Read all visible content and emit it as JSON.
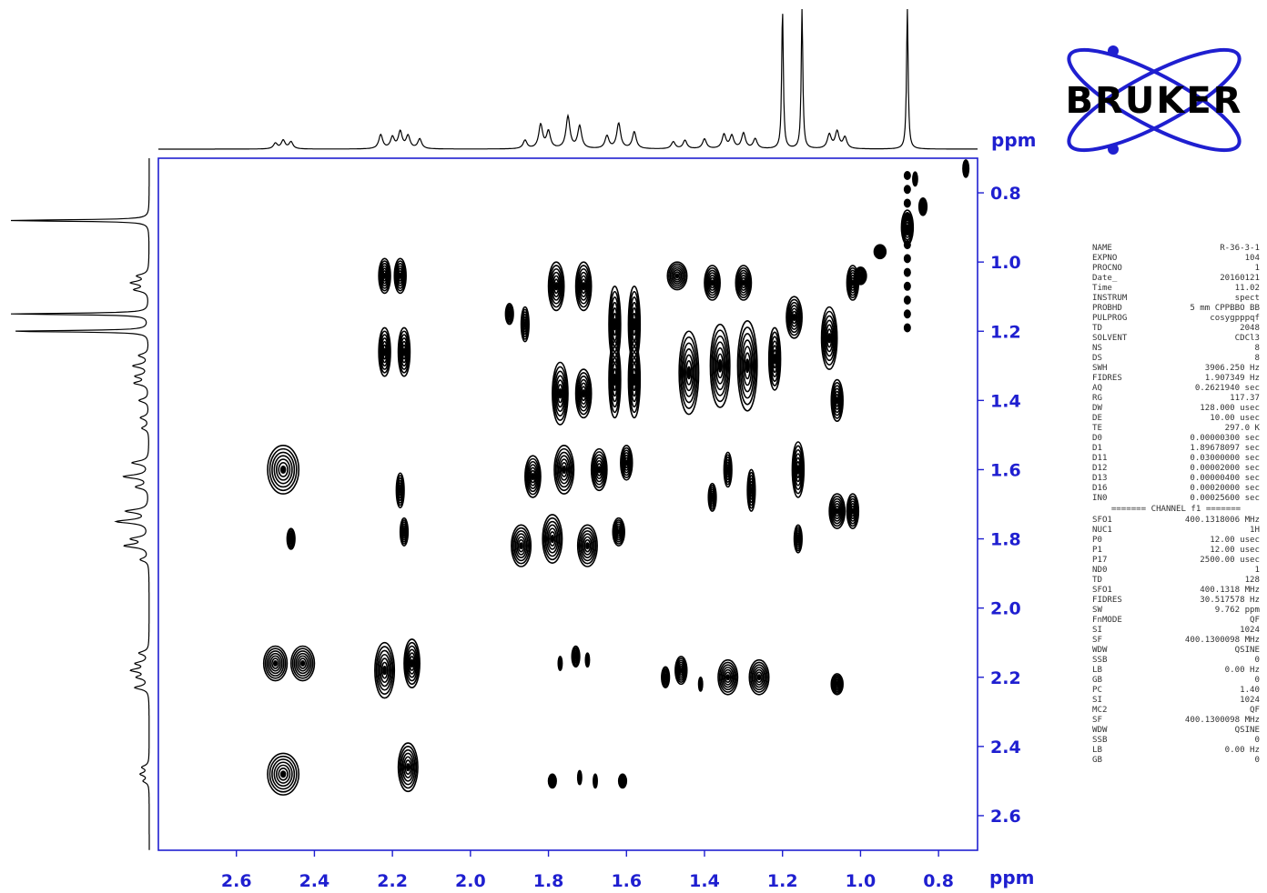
{
  "colors": {
    "axis": "#1f1fd0",
    "contour": "#000000",
    "trace": "#000000",
    "logo": "#1f1fd0"
  },
  "logo": {
    "name": "bruker-logo",
    "text": "BRUKER"
  },
  "chart_data": {
    "type": "heatmap",
    "subtype": "2D NMR COSY contour plot",
    "title": "",
    "xlabel": "ppm",
    "ylabel": "ppm",
    "xlim": [
      2.8,
      0.7
    ],
    "ylim": [
      0.7,
      2.7
    ],
    "x_reversed": true,
    "y_increases_downward": true,
    "grid": false,
    "x_ticks": [
      2.6,
      2.4,
      2.2,
      2.0,
      1.8,
      1.6,
      1.4,
      1.2,
      1.0,
      0.8
    ],
    "y_ticks": [
      0.8,
      1.0,
      1.2,
      1.4,
      1.6,
      1.8,
      2.0,
      2.2,
      2.4,
      2.6
    ],
    "x_tick_labels": [
      "2.6",
      "2.4",
      "2.2",
      "2.0",
      "1.8",
      "1.6",
      "1.4",
      "1.2",
      "1.0",
      "0.8"
    ],
    "y_tick_labels": [
      "0.8",
      "1.0",
      "1.2",
      "1.4",
      "1.6",
      "1.8",
      "2.0",
      "2.2",
      "2.4",
      "2.6"
    ],
    "projection_1d": {
      "peaks": [
        {
          "ppm": 2.5,
          "h": 0.04
        },
        {
          "ppm": 2.48,
          "h": 0.06
        },
        {
          "ppm": 2.46,
          "h": 0.05
        },
        {
          "ppm": 2.23,
          "h": 0.1
        },
        {
          "ppm": 2.2,
          "h": 0.08
        },
        {
          "ppm": 2.18,
          "h": 0.12
        },
        {
          "ppm": 2.16,
          "h": 0.09
        },
        {
          "ppm": 2.13,
          "h": 0.07
        },
        {
          "ppm": 1.86,
          "h": 0.06
        },
        {
          "ppm": 1.82,
          "h": 0.17
        },
        {
          "ppm": 1.8,
          "h": 0.12
        },
        {
          "ppm": 1.75,
          "h": 0.23
        },
        {
          "ppm": 1.72,
          "h": 0.16
        },
        {
          "ppm": 1.65,
          "h": 0.09
        },
        {
          "ppm": 1.62,
          "h": 0.18
        },
        {
          "ppm": 1.58,
          "h": 0.12
        },
        {
          "ppm": 1.48,
          "h": 0.05
        },
        {
          "ppm": 1.45,
          "h": 0.06
        },
        {
          "ppm": 1.4,
          "h": 0.07
        },
        {
          "ppm": 1.35,
          "h": 0.1
        },
        {
          "ppm": 1.33,
          "h": 0.09
        },
        {
          "ppm": 1.3,
          "h": 0.11
        },
        {
          "ppm": 1.27,
          "h": 0.07
        },
        {
          "ppm": 1.2,
          "h": 1.0
        },
        {
          "ppm": 1.15,
          "h": 1.0
        },
        {
          "ppm": 1.08,
          "h": 0.1
        },
        {
          "ppm": 1.06,
          "h": 0.12
        },
        {
          "ppm": 1.04,
          "h": 0.08
        },
        {
          "ppm": 0.88,
          "h": 1.0
        }
      ]
    },
    "cross_peaks": [
      {
        "x": 2.22,
        "y": 1.04,
        "w": 0.03,
        "h": 0.1
      },
      {
        "x": 2.18,
        "y": 1.04,
        "w": 0.03,
        "h": 0.1
      },
      {
        "x": 2.22,
        "y": 1.26,
        "w": 0.03,
        "h": 0.14
      },
      {
        "x": 2.17,
        "y": 1.26,
        "w": 0.03,
        "h": 0.14
      },
      {
        "x": 2.48,
        "y": 1.6,
        "w": 0.08,
        "h": 0.14
      },
      {
        "x": 2.18,
        "y": 1.66,
        "w": 0.02,
        "h": 0.1
      },
      {
        "x": 2.17,
        "y": 1.78,
        "w": 0.02,
        "h": 0.08
      },
      {
        "x": 2.46,
        "y": 1.8,
        "w": 0.02,
        "h": 0.06
      },
      {
        "x": 2.5,
        "y": 2.16,
        "w": 0.06,
        "h": 0.1
      },
      {
        "x": 2.43,
        "y": 2.16,
        "w": 0.06,
        "h": 0.1
      },
      {
        "x": 2.22,
        "y": 2.18,
        "w": 0.05,
        "h": 0.16
      },
      {
        "x": 2.15,
        "y": 2.16,
        "w": 0.04,
        "h": 0.14
      },
      {
        "x": 2.48,
        "y": 2.48,
        "w": 0.08,
        "h": 0.12
      },
      {
        "x": 2.16,
        "y": 2.46,
        "w": 0.05,
        "h": 0.14
      },
      {
        "x": 1.9,
        "y": 1.15,
        "w": 0.02,
        "h": 0.06
      },
      {
        "x": 1.86,
        "y": 1.18,
        "w": 0.02,
        "h": 0.1
      },
      {
        "x": 1.78,
        "y": 1.07,
        "w": 0.04,
        "h": 0.14
      },
      {
        "x": 1.71,
        "y": 1.07,
        "w": 0.04,
        "h": 0.14
      },
      {
        "x": 1.63,
        "y": 1.18,
        "w": 0.03,
        "h": 0.22
      },
      {
        "x": 1.58,
        "y": 1.18,
        "w": 0.03,
        "h": 0.22
      },
      {
        "x": 1.77,
        "y": 1.38,
        "w": 0.04,
        "h": 0.18
      },
      {
        "x": 1.71,
        "y": 1.38,
        "w": 0.04,
        "h": 0.14
      },
      {
        "x": 1.63,
        "y": 1.34,
        "w": 0.03,
        "h": 0.22
      },
      {
        "x": 1.58,
        "y": 1.34,
        "w": 0.03,
        "h": 0.22
      },
      {
        "x": 1.84,
        "y": 1.62,
        "w": 0.04,
        "h": 0.12
      },
      {
        "x": 1.76,
        "y": 1.6,
        "w": 0.05,
        "h": 0.14
      },
      {
        "x": 1.67,
        "y": 1.6,
        "w": 0.04,
        "h": 0.12
      },
      {
        "x": 1.6,
        "y": 1.58,
        "w": 0.03,
        "h": 0.1
      },
      {
        "x": 1.87,
        "y": 1.82,
        "w": 0.05,
        "h": 0.12
      },
      {
        "x": 1.79,
        "y": 1.8,
        "w": 0.05,
        "h": 0.14
      },
      {
        "x": 1.7,
        "y": 1.82,
        "w": 0.05,
        "h": 0.12
      },
      {
        "x": 1.62,
        "y": 1.78,
        "w": 0.03,
        "h": 0.08
      },
      {
        "x": 1.47,
        "y": 1.04,
        "w": 0.05,
        "h": 0.08
      },
      {
        "x": 1.38,
        "y": 1.06,
        "w": 0.04,
        "h": 0.1
      },
      {
        "x": 1.3,
        "y": 1.06,
        "w": 0.04,
        "h": 0.1
      },
      {
        "x": 1.44,
        "y": 1.32,
        "w": 0.05,
        "h": 0.24
      },
      {
        "x": 1.36,
        "y": 1.3,
        "w": 0.05,
        "h": 0.24
      },
      {
        "x": 1.29,
        "y": 1.3,
        "w": 0.05,
        "h": 0.26
      },
      {
        "x": 1.22,
        "y": 1.28,
        "w": 0.03,
        "h": 0.18
      },
      {
        "x": 1.38,
        "y": 1.68,
        "w": 0.02,
        "h": 0.08
      },
      {
        "x": 1.34,
        "y": 1.6,
        "w": 0.02,
        "h": 0.1
      },
      {
        "x": 1.28,
        "y": 1.66,
        "w": 0.02,
        "h": 0.12
      },
      {
        "x": 1.17,
        "y": 1.16,
        "w": 0.04,
        "h": 0.12
      },
      {
        "x": 1.08,
        "y": 1.22,
        "w": 0.04,
        "h": 0.18
      },
      {
        "x": 1.06,
        "y": 1.4,
        "w": 0.03,
        "h": 0.12
      },
      {
        "x": 1.02,
        "y": 1.06,
        "w": 0.03,
        "h": 0.1
      },
      {
        "x": 1.16,
        "y": 1.6,
        "w": 0.03,
        "h": 0.16
      },
      {
        "x": 1.16,
        "y": 1.8,
        "w": 0.02,
        "h": 0.08
      },
      {
        "x": 1.06,
        "y": 1.72,
        "w": 0.04,
        "h": 0.1
      },
      {
        "x": 1.02,
        "y": 1.72,
        "w": 0.03,
        "h": 0.1
      },
      {
        "x": 1.77,
        "y": 2.16,
        "w": 0.01,
        "h": 0.04
      },
      {
        "x": 1.73,
        "y": 2.14,
        "w": 0.02,
        "h": 0.06
      },
      {
        "x": 1.7,
        "y": 2.15,
        "w": 0.01,
        "h": 0.04
      },
      {
        "x": 1.5,
        "y": 2.2,
        "w": 0.02,
        "h": 0.06
      },
      {
        "x": 1.46,
        "y": 2.18,
        "w": 0.03,
        "h": 0.08
      },
      {
        "x": 1.41,
        "y": 2.22,
        "w": 0.01,
        "h": 0.04
      },
      {
        "x": 1.34,
        "y": 2.2,
        "w": 0.05,
        "h": 0.1
      },
      {
        "x": 1.26,
        "y": 2.2,
        "w": 0.05,
        "h": 0.1
      },
      {
        "x": 1.06,
        "y": 2.22,
        "w": 0.03,
        "h": 0.06
      },
      {
        "x": 1.79,
        "y": 2.5,
        "w": 0.02,
        "h": 0.04
      },
      {
        "x": 1.72,
        "y": 2.49,
        "w": 0.01,
        "h": 0.04
      },
      {
        "x": 1.68,
        "y": 2.5,
        "w": 0.01,
        "h": 0.04
      },
      {
        "x": 1.61,
        "y": 2.5,
        "w": 0.02,
        "h": 0.04
      }
    ],
    "diagonal_peaks": [
      {
        "x": 0.73,
        "y": 0.73,
        "w": 0.015,
        "h": 0.05
      },
      {
        "x": 0.88,
        "y": 0.9,
        "w": 0.03,
        "h": 0.1
      },
      {
        "x": 0.84,
        "y": 0.84,
        "w": 0.02,
        "h": 0.05
      },
      {
        "x": 0.86,
        "y": 0.76,
        "w": 0.012,
        "h": 0.04
      },
      {
        "x": 0.95,
        "y": 0.97,
        "w": 0.03,
        "h": 0.04
      },
      {
        "x": 1.0,
        "y": 1.04,
        "w": 0.03,
        "h": 0.05
      }
    ],
    "diagonal_streak": {
      "x": 0.88,
      "y_min": 0.75,
      "y_max": 1.2
    }
  },
  "parameters": {
    "group1": [
      [
        "NAME",
        "R-36-3-1"
      ],
      [
        "EXPNO",
        "104"
      ],
      [
        "PROCNO",
        "1"
      ],
      [
        "Date_",
        "20160121"
      ],
      [
        "Time",
        "11.02"
      ],
      [
        "INSTRUM",
        "spect"
      ],
      [
        "PROBHD",
        "5 mm CPPBBO BB"
      ],
      [
        "PULPROG",
        "cosygpppqf"
      ],
      [
        "TD",
        "2048"
      ],
      [
        "SOLVENT",
        "CDCl3"
      ],
      [
        "NS",
        "8"
      ],
      [
        "DS",
        "8"
      ],
      [
        "SWH",
        "3906.250 Hz"
      ],
      [
        "FIDRES",
        "1.907349 Hz"
      ],
      [
        "AQ",
        "0.2621940 sec"
      ],
      [
        "RG",
        "117.37"
      ],
      [
        "DW",
        "128.000 usec"
      ],
      [
        "DE",
        "10.00 usec"
      ],
      [
        "TE",
        "297.0 K"
      ],
      [
        "D0",
        "0.00000300 sec"
      ],
      [
        "D1",
        "1.89678097 sec"
      ],
      [
        "D11",
        "0.03000000 sec"
      ],
      [
        "D12",
        "0.00002000 sec"
      ],
      [
        "D13",
        "0.00000400 sec"
      ],
      [
        "D16",
        "0.00020000 sec"
      ],
      [
        "IN0",
        "0.00025600 sec"
      ]
    ],
    "divider": "======= CHANNEL f1 =======",
    "group2": [
      [
        "SFO1",
        "400.1318006 MHz"
      ],
      [
        "NUC1",
        "1H"
      ],
      [
        "P0",
        "12.00 usec"
      ],
      [
        "P1",
        "12.00 usec"
      ],
      [
        "P17",
        "2500.00 usec"
      ],
      [
        "ND0",
        "1"
      ],
      [
        "TD",
        "128"
      ],
      [
        "SFO1",
        "400.1318 MHz"
      ],
      [
        "FIDRES",
        "30.517578 Hz"
      ],
      [
        "SW",
        "9.762 ppm"
      ],
      [
        "FnMODE",
        "QF"
      ],
      [
        "SI",
        "1024"
      ],
      [
        "SF",
        "400.1300098 MHz"
      ],
      [
        "WDW",
        "QSINE"
      ],
      [
        "SSB",
        "0"
      ],
      [
        "LB",
        "0.00 Hz"
      ],
      [
        "GB",
        "0"
      ],
      [
        "PC",
        "1.40"
      ],
      [
        "SI",
        "1024"
      ],
      [
        "MC2",
        "QF"
      ],
      [
        "SF",
        "400.1300098 MHz"
      ],
      [
        "WDW",
        "QSINE"
      ],
      [
        "SSB",
        "0"
      ],
      [
        "LB",
        "0.00 Hz"
      ],
      [
        "GB",
        "0"
      ]
    ]
  }
}
